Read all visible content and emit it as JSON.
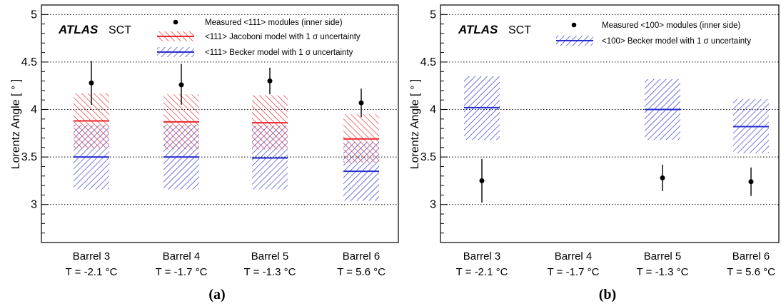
{
  "chart_data": [
    {
      "type": "box",
      "panel_label": "(a)",
      "experiment": "ATLAS",
      "detector": "SCT",
      "ylabel": "Lorentz Angle [ ° ]",
      "ylim": [
        2.6,
        5.1
      ],
      "yticks": [
        "3",
        "3.5",
        "4",
        "4.5",
        "5"
      ],
      "ytick_values": [
        3,
        3.5,
        4,
        4.5,
        5
      ],
      "grid": "horizontal-dotted",
      "legend_position": "top-right",
      "legend": {
        "measured": "Measured <111> modules (inner side)",
        "model1": "<111> Jacoboni model with 1 σ uncertainty",
        "model2": "<111> Becker model with 1 σ uncertainty"
      },
      "categories": [
        {
          "barrel": "Barrel 3",
          "temperature": "T = -2.1 °C"
        },
        {
          "barrel": "Barrel 4",
          "temperature": "T = -1.7 °C"
        },
        {
          "barrel": "Barrel 5",
          "temperature": "T = -1.3 °C"
        },
        {
          "barrel": "Barrel 6",
          "temperature": "T = 5.6 °C"
        }
      ],
      "series": [
        {
          "key": "measured",
          "points": [
            {
              "value": 4.28,
              "err_low": 0.23,
              "err_high": 0.23
            },
            {
              "value": 4.26,
              "err_low": 0.21,
              "err_high": 0.22
            },
            {
              "value": 4.3,
              "err_low": 0.14,
              "err_high": 0.14
            },
            {
              "value": 4.07,
              "err_low": 0.15,
              "err_high": 0.15
            }
          ]
        },
        {
          "key": "model1",
          "color": "#e8262b",
          "bands": [
            {
              "central": 3.88,
              "low": 3.59,
              "high": 4.17
            },
            {
              "central": 3.87,
              "low": 3.58,
              "high": 4.16
            },
            {
              "central": 3.86,
              "low": 3.58,
              "high": 4.15
            },
            {
              "central": 3.69,
              "low": 3.44,
              "high": 3.95
            }
          ]
        },
        {
          "key": "model2",
          "color": "#2b2fcf",
          "bands": [
            {
              "central": 3.5,
              "low": 3.16,
              "high": 3.84
            },
            {
              "central": 3.5,
              "low": 3.16,
              "high": 3.84
            },
            {
              "central": 3.49,
              "low": 3.16,
              "high": 3.83
            },
            {
              "central": 3.35,
              "low": 3.04,
              "high": 3.66
            }
          ]
        }
      ]
    },
    {
      "type": "box",
      "panel_label": "(b)",
      "experiment": "ATLAS",
      "detector": "SCT",
      "ylabel": "Lorentz Angle [ ° ]",
      "ylim": [
        2.6,
        5.1
      ],
      "yticks": [
        "3",
        "3.5",
        "4",
        "4.5",
        "5"
      ],
      "ytick_values": [
        3,
        3.5,
        4,
        4.5,
        5
      ],
      "grid": "horizontal-dotted",
      "legend_position": "top-right",
      "legend": {
        "measured": "Measured <100> modules (inner side)",
        "model2": "<100> Becker model with 1 σ uncertainty"
      },
      "categories": [
        {
          "barrel": "Barrel 3",
          "temperature": "T = -2.1 °C"
        },
        {
          "barrel": "Barrel 4",
          "temperature": "T = -1.7 °C"
        },
        {
          "barrel": "Barrel 5",
          "temperature": "T = -1.3 °C"
        },
        {
          "barrel": "Barrel 6",
          "temperature": "T = 5.6 °C"
        }
      ],
      "series": [
        {
          "key": "measured",
          "points": [
            {
              "value": 3.25,
              "err_low": 0.23,
              "err_high": 0.23
            },
            null,
            {
              "value": 3.28,
              "err_low": 0.14,
              "err_high": 0.14
            },
            {
              "value": 3.24,
              "err_low": 0.15,
              "err_high": 0.15
            }
          ]
        },
        {
          "key": "model2",
          "color": "#2b2fcf",
          "bands": [
            {
              "central": 4.02,
              "low": 3.68,
              "high": 4.35
            },
            null,
            {
              "central": 4.0,
              "low": 3.68,
              "high": 4.32
            },
            {
              "central": 3.82,
              "low": 3.54,
              "high": 4.11
            }
          ]
        }
      ]
    }
  ]
}
